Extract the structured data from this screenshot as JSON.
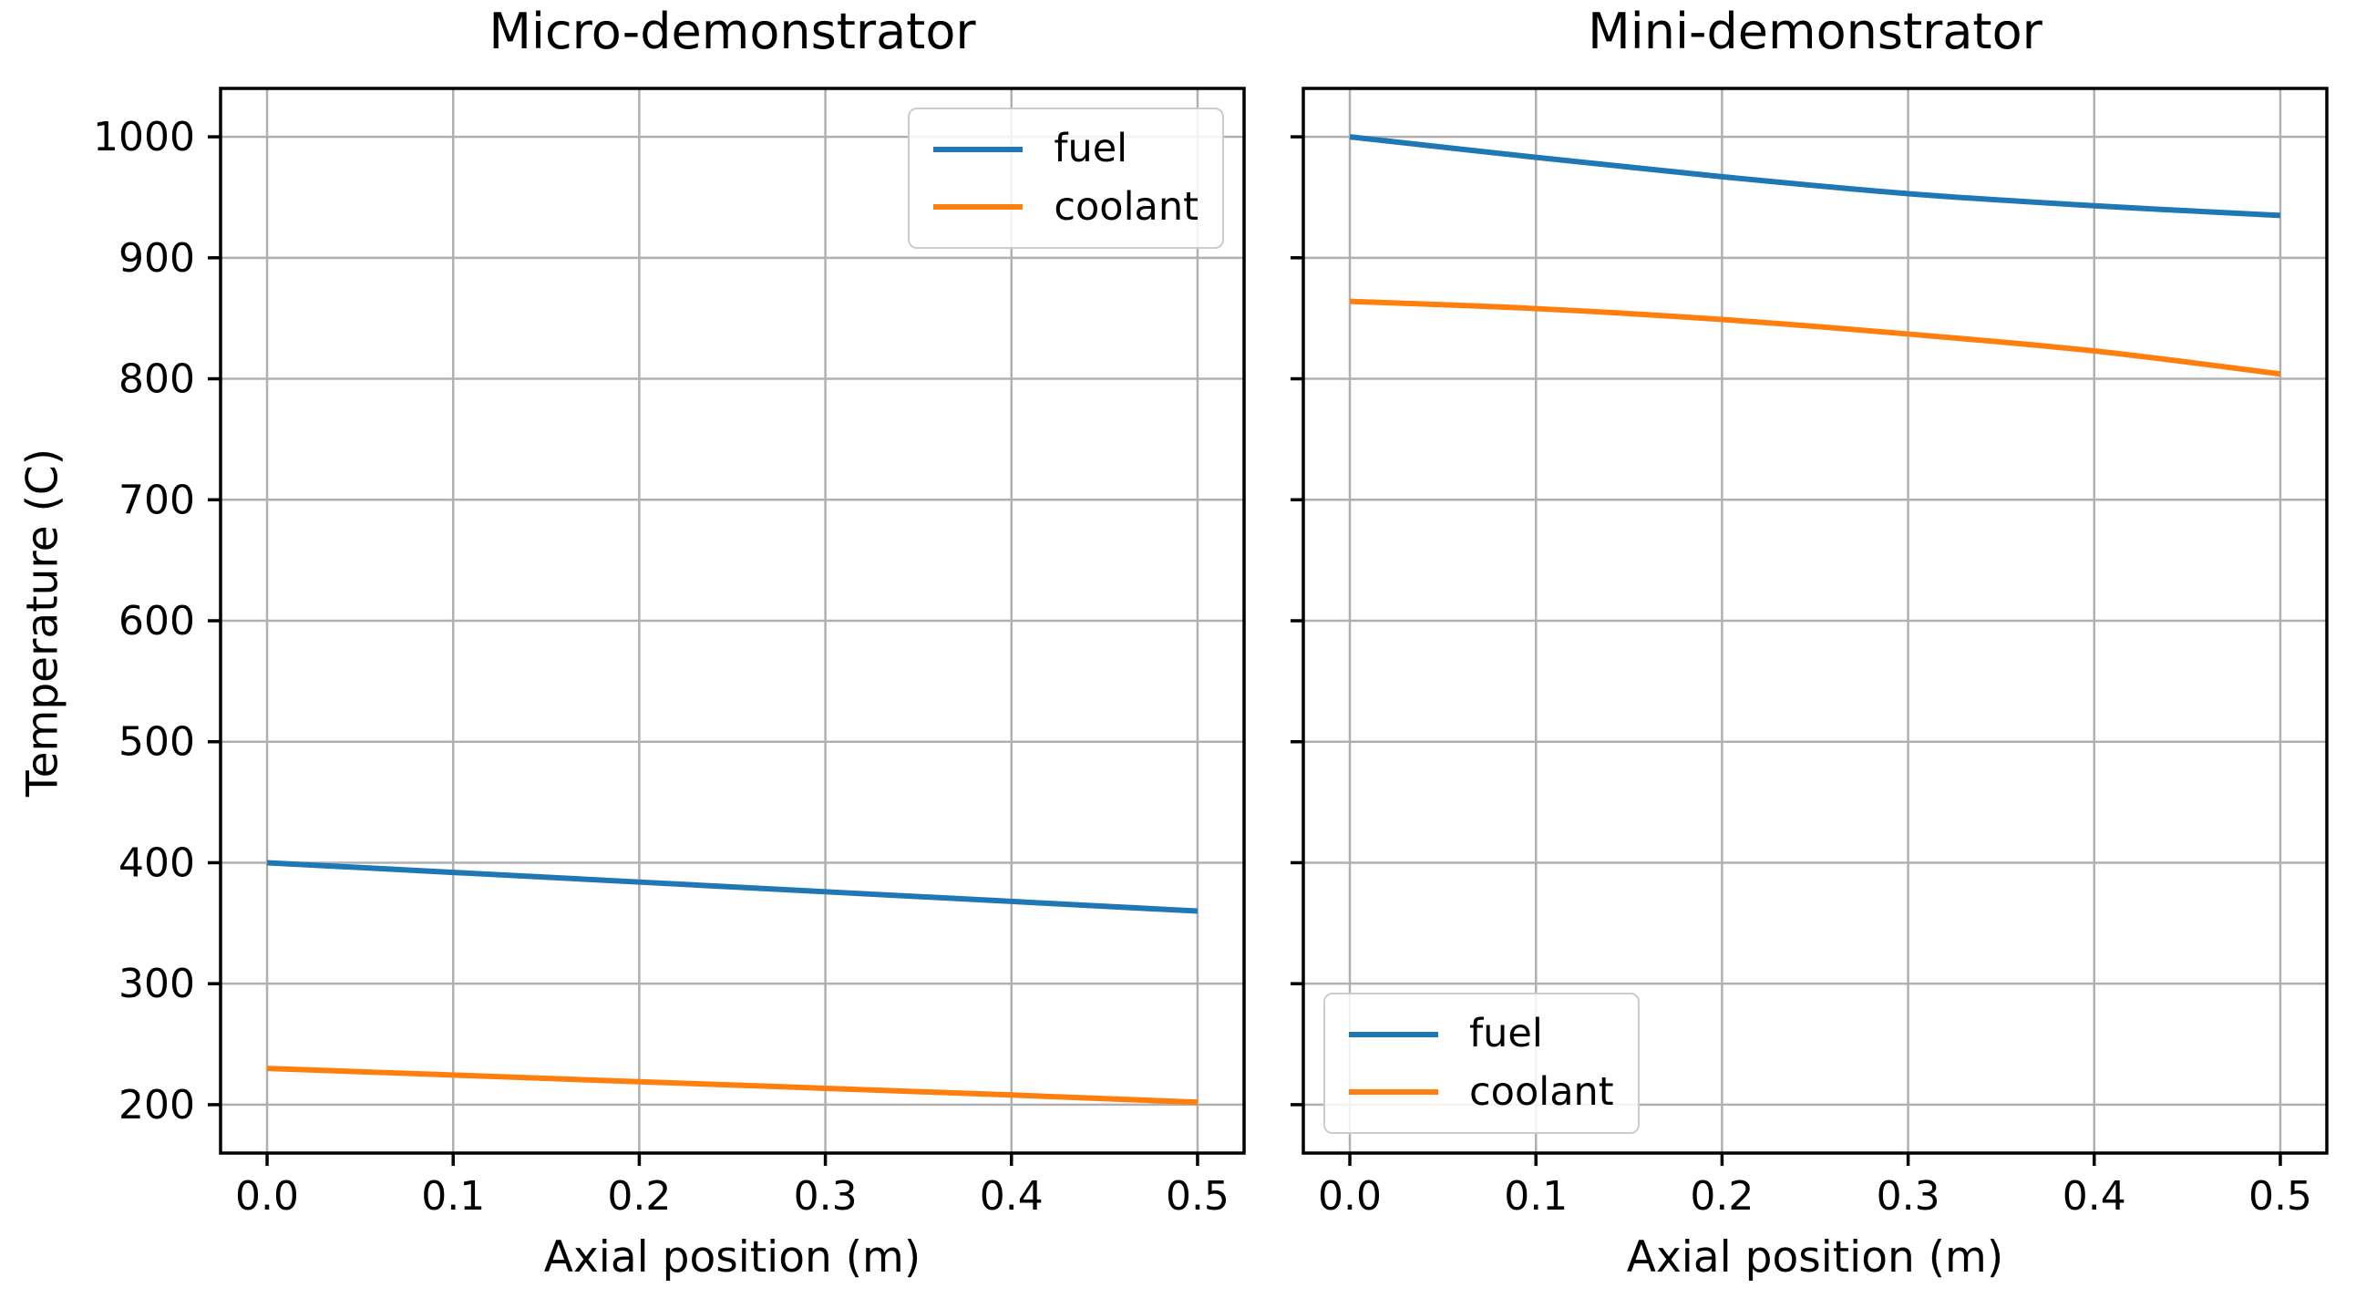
{
  "figure": {
    "ylabel": "Temperature (C)"
  },
  "colors": {
    "grid": "#b0b0b0",
    "spine": "#000000",
    "legend_border": "#cccccc",
    "fuel": "#1f77b4",
    "coolant": "#ff7f0e"
  },
  "chart_data": [
    {
      "type": "line",
      "title": "Micro-demonstrator",
      "xlabel": "Axial position (m)",
      "ylabel": "Temperature (C)",
      "x": [
        0.0,
        0.1,
        0.2,
        0.3,
        0.4,
        0.5
      ],
      "series": [
        {
          "name": "fuel",
          "color": "#1f77b4",
          "values": [
            400,
            392,
            384,
            376,
            368,
            360
          ]
        },
        {
          "name": "coolant",
          "color": "#ff7f0e",
          "values": [
            230,
            224.5,
            219,
            213.5,
            208,
            202
          ]
        }
      ],
      "xlim": [
        -0.025,
        0.525
      ],
      "ylim": [
        160,
        1040
      ],
      "xticks": [
        0.0,
        0.1,
        0.2,
        0.3,
        0.4,
        0.5
      ],
      "yticks": [
        200,
        300,
        400,
        500,
        600,
        700,
        800,
        900,
        1000
      ],
      "ytick_labels_visible": true,
      "grid": true,
      "legend_position": "upper right"
    },
    {
      "type": "line",
      "title": "Mini-demonstrator",
      "xlabel": "Axial position (m)",
      "ylabel": "",
      "x": [
        0.0,
        0.1,
        0.2,
        0.3,
        0.4,
        0.5
      ],
      "series": [
        {
          "name": "fuel",
          "color": "#1f77b4",
          "values": [
            1000,
            983,
            967,
            953,
            943,
            935
          ]
        },
        {
          "name": "coolant",
          "color": "#ff7f0e",
          "values": [
            864,
            858,
            849,
            837,
            823,
            804
          ]
        }
      ],
      "xlim": [
        -0.025,
        0.525
      ],
      "ylim": [
        160,
        1040
      ],
      "xticks": [
        0.0,
        0.1,
        0.2,
        0.3,
        0.4,
        0.5
      ],
      "yticks": [
        200,
        300,
        400,
        500,
        600,
        700,
        800,
        900,
        1000
      ],
      "ytick_labels_visible": false,
      "grid": true,
      "legend_position": "lower left"
    }
  ]
}
